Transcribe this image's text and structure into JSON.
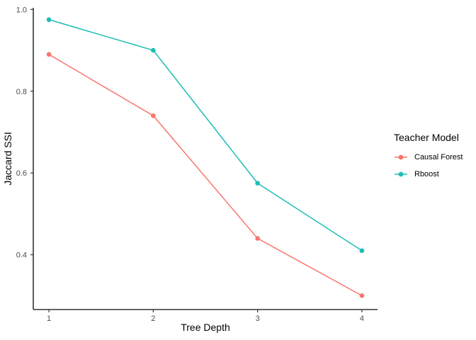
{
  "figure": {
    "background": "#ffffff"
  },
  "chart_data": {
    "type": "line",
    "title": "",
    "xlabel": "Tree Depth",
    "ylabel": "Jaccard SSI",
    "x": [
      1,
      2,
      3,
      4
    ],
    "x_tick_labels": [
      "1",
      "2",
      "3",
      "4"
    ],
    "y_tick_values": [
      0.4,
      0.6,
      0.8,
      1.0
    ],
    "y_tick_labels": [
      "0.4",
      "0.6",
      "0.8",
      "1.0"
    ],
    "xlim": [
      0.85,
      4.15
    ],
    "ylim": [
      0.266,
      1.004
    ],
    "grid": false,
    "legend": {
      "title": "Teacher Model",
      "position": "right"
    },
    "series": [
      {
        "name": "Causal Forest",
        "color": "#F8766D",
        "values": [
          0.89,
          0.74,
          0.44,
          0.3
        ]
      },
      {
        "name": "Rboost",
        "color": "#1CBDB4",
        "values": [
          0.975,
          0.9,
          0.575,
          0.41
        ]
      }
    ],
    "axis_line_color": "#333333",
    "tick_label_color": "#4D4D4D",
    "text_color": "#000000"
  }
}
